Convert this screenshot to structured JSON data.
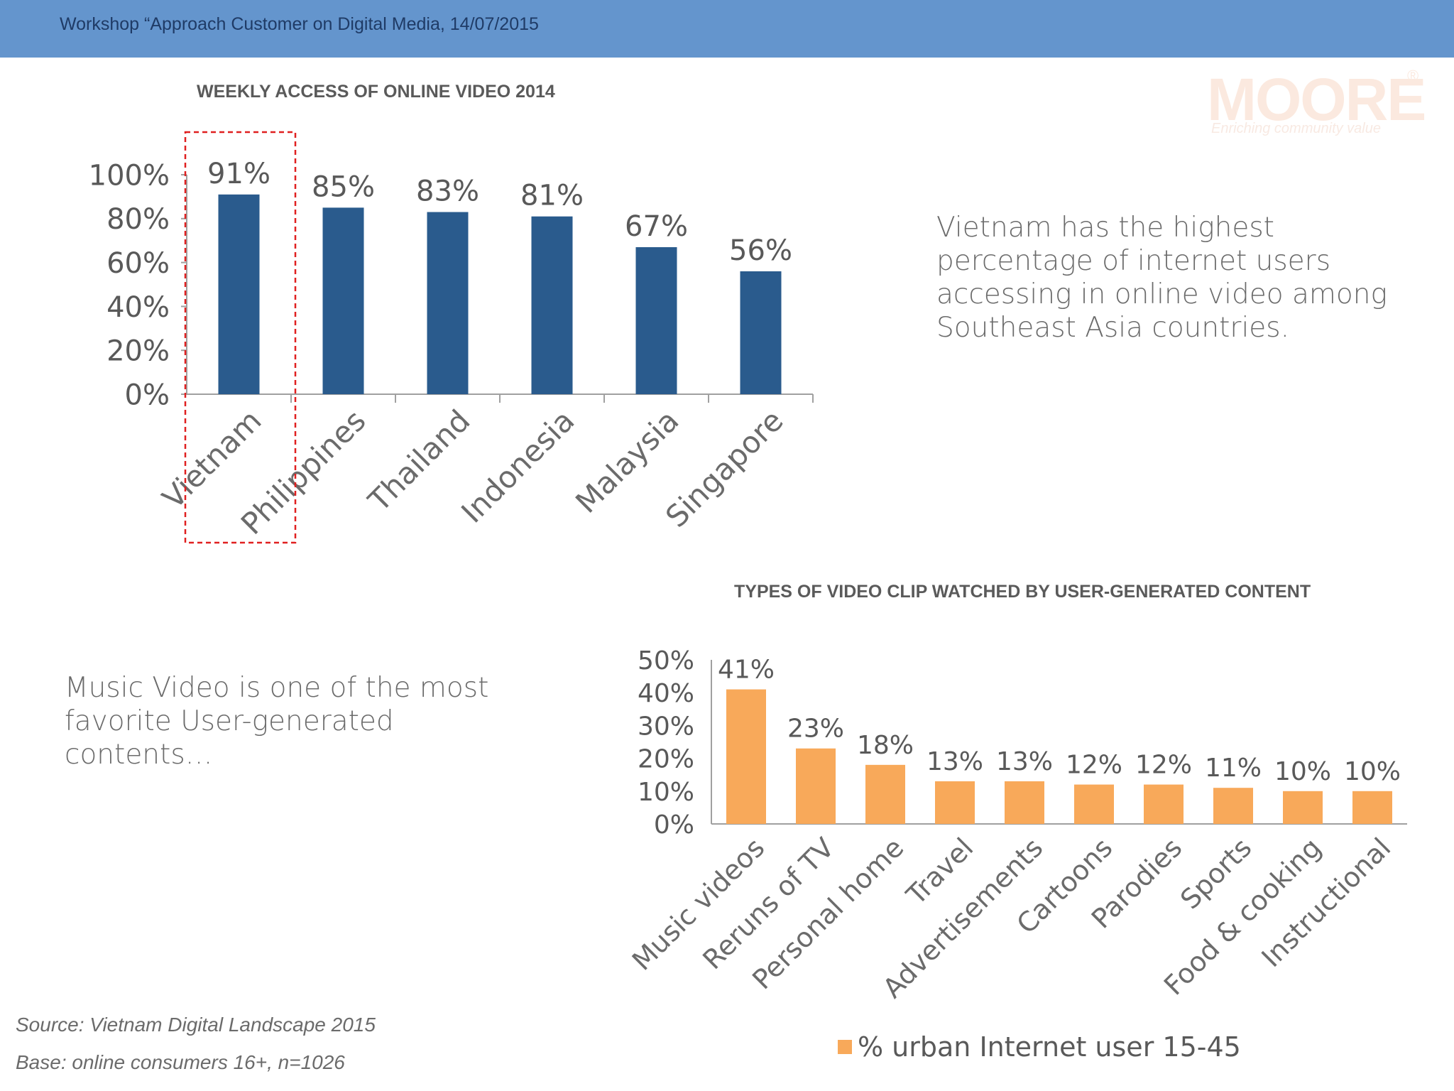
{
  "header": {
    "title": "Workshop “Approach Customer on Digital Media, 14/07/2015"
  },
  "logo": {
    "word": "MOORE",
    "registered": "®",
    "tagline": "Enriching community value"
  },
  "note_top": "Vietnam has the highest percentage of internet users accessing in online video among Southeast Asia countries.",
  "note_bottom": "Music Video is one of the most favorite User-generated contents…",
  "source": "Source: Vietnam Digital Landscape 2015",
  "base": "Base: online consumers 16+, n=1026",
  "colors": {
    "header": "#6495cd",
    "bar_blue": "#2a5b8d",
    "bar_orange": "#f8a95a",
    "highlight": "#e02020"
  },
  "chart_data": [
    {
      "type": "bar",
      "title": "WEEKLY ACCESS OF ONLINE VIDEO 2014",
      "categories": [
        "Vietnam",
        "Philippines",
        "Thailand",
        "Indonesia",
        "Malaysia",
        "Singapore"
      ],
      "values": [
        91,
        85,
        83,
        81,
        67,
        56
      ],
      "data_labels": [
        "91%",
        "85%",
        "83%",
        "81%",
        "67%",
        "56%"
      ],
      "ylim": [
        0,
        100
      ],
      "yticks": [
        "0%",
        "20%",
        "40%",
        "60%",
        "80%",
        "100%"
      ],
      "highlight": "Vietnam",
      "color": "#2a5b8d"
    },
    {
      "type": "bar",
      "title": "TYPES OF VIDEO CLIP WATCHED BY USER-GENERATED CONTENT",
      "categories": [
        "Music videos",
        "Reruns of TV",
        "Personal home",
        "Travel",
        "Advertisements",
        "Cartoons",
        "Parodies",
        "Sports",
        "Food & cooking",
        "Instructional"
      ],
      "values": [
        41,
        23,
        18,
        13,
        13,
        12,
        12,
        11,
        10,
        10
      ],
      "data_labels": [
        "41%",
        "23%",
        "18%",
        "13%",
        "13%",
        "12%",
        "12%",
        "11%",
        "10%",
        "10%"
      ],
      "ylim": [
        0,
        50
      ],
      "yticks": [
        "0%",
        "10%",
        "20%",
        "30%",
        "40%",
        "50%"
      ],
      "legend": "% urban Internet user 15-45",
      "color": "#f8a95a"
    }
  ]
}
